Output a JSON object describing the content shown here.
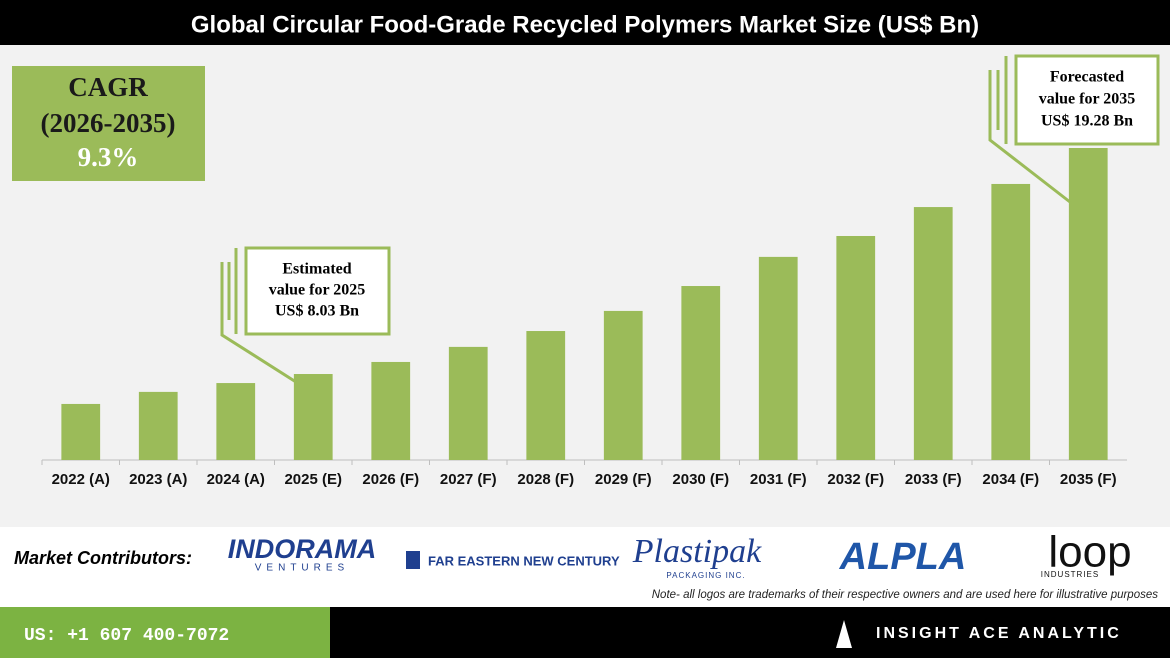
{
  "header": {
    "title": "Global Circular Food-Grade Recycled Polymers Market Size (US$ Bn)"
  },
  "chart_data": {
    "type": "bar",
    "categories": [
      "2022 (A)",
      "2023 (A)",
      "2024 (A)",
      "2025 (E)",
      "2026 (F)",
      "2027 (F)",
      "2028 (F)",
      "2029 (F)",
      "2030 (F)",
      "2031 (F)",
      "2032 (F)",
      "2033 (F)",
      "2034 (F)",
      "2035 (F)"
    ],
    "values": [
      6.54,
      7.14,
      7.58,
      8.03,
      8.63,
      9.38,
      10.17,
      11.17,
      12.41,
      13.86,
      14.9,
      16.34,
      17.49,
      19.28
    ],
    "color": "#9bbb59",
    "ylim": [
      3.75,
      23.66
    ]
  },
  "cagr": {
    "label": "CAGR",
    "period": "(2026-2035)",
    "value": "9.3%"
  },
  "annotations": [
    {
      "lines": [
        "Estimated",
        "value for 2025",
        "US$ 8.03 Bn"
      ]
    },
    {
      "lines": [
        "Forecasted",
        "value for 2035",
        "US$ 19.28 Bn"
      ]
    }
  ],
  "contributors": {
    "label": "Market Contributors:",
    "logos": [
      {
        "name": "INDORAMA",
        "sub": "VENTURES"
      },
      {
        "name": "FAR EASTERN NEW CENTURY"
      },
      {
        "name": "Plastipak",
        "sub": "PACKAGING INC."
      },
      {
        "name": "ALPLA"
      },
      {
        "name": "loop",
        "sub": "INDUSTRIES"
      }
    ]
  },
  "note": "Note- all logos are trademarks of their respective owners and are used here for illustrative purposes",
  "footer": {
    "phone": "US: +1 607 400-7072",
    "brand": "INSIGHT ACE ANALYTIC"
  }
}
